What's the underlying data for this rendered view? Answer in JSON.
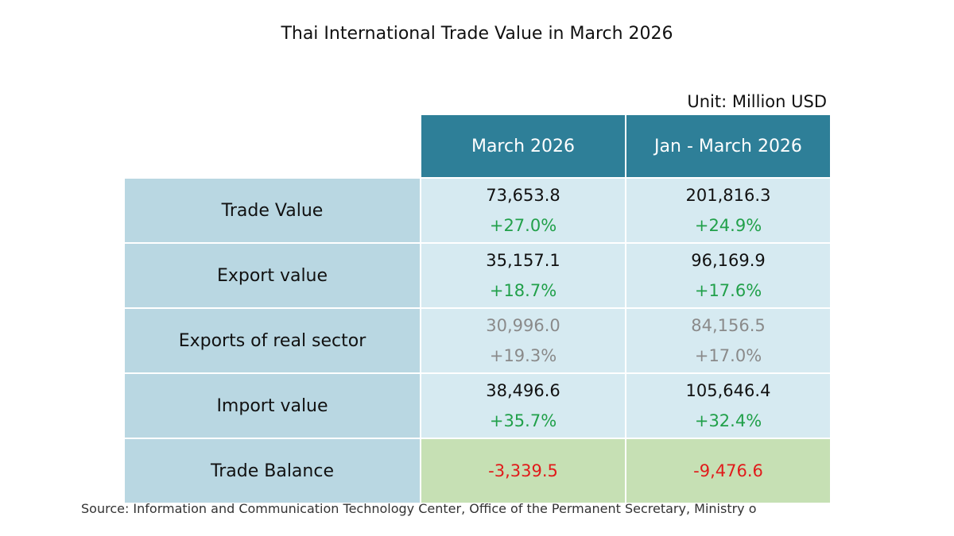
{
  "title": "Thai International Trade Value in March 2026",
  "unit": "Unit: Million USD",
  "columns": [
    "March 2026",
    "Jan - March 2026"
  ],
  "rows": [
    {
      "label": "Trade Value",
      "march": {
        "value": "73,653.8",
        "change": "+27.0%"
      },
      "ytd": {
        "value": "201,816.3",
        "change": "+24.9%"
      }
    },
    {
      "label": "Export value",
      "march": {
        "value": "35,157.1",
        "change": "+18.7%"
      },
      "ytd": {
        "value": "96,169.9",
        "change": "+17.6%"
      }
    },
    {
      "label": "Exports of real sector",
      "march": {
        "value": "30,996.0",
        "change": "+19.3%"
      },
      "ytd": {
        "value": "84,156.5",
        "change": "+17.0%"
      }
    },
    {
      "label": "Import value",
      "march": {
        "value": "38,496.6",
        "change": "+35.7%"
      },
      "ytd": {
        "value": "105,646.4",
        "change": "+32.4%"
      }
    }
  ],
  "balance": {
    "label": "Trade Balance",
    "march": "-3,339.5",
    "ytd": "-9,476.6"
  },
  "source": "Source: Information and Communication Technology Center, Office of the Permanent Secretary, Ministry o",
  "colors": {
    "header": "#2e7f98",
    "label_bg": "#b9d7e2",
    "cell_bg": "#d6eaf1",
    "balance_bg": "#c6e0b4",
    "positive": "#21a04a",
    "negative": "#e11b1b",
    "muted": "#8a8a8a"
  }
}
